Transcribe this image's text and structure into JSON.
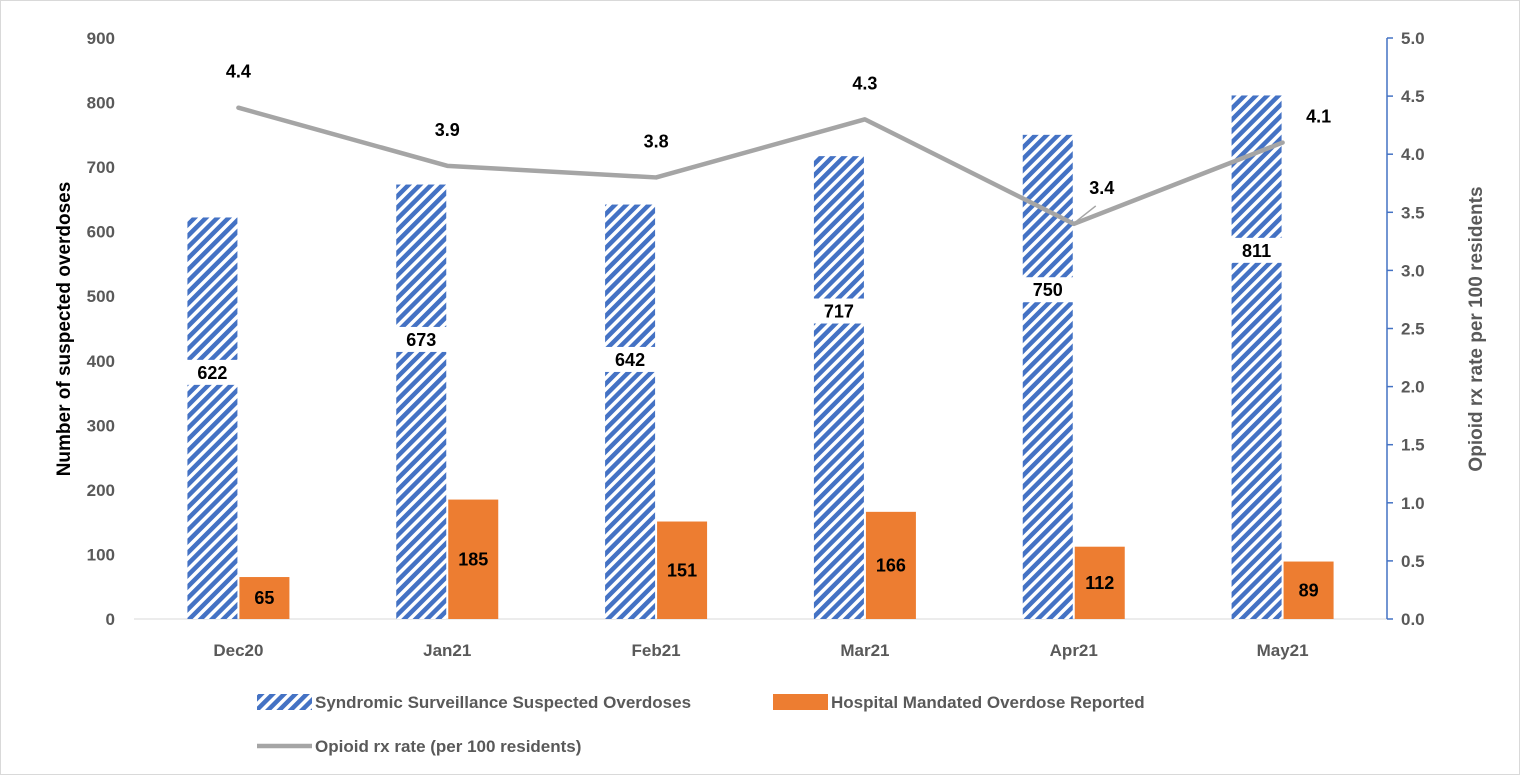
{
  "chart_data": {
    "type": "bar",
    "categories": [
      "Dec20",
      "Jan21",
      "Feb21",
      "Mar21",
      "Apr21",
      "May21"
    ],
    "series": [
      {
        "name": "Syndromic Surveillance Suspected Overdoses",
        "type": "bar",
        "axis": "left",
        "pattern": "diagonal-stripe",
        "color": "#4472c4",
        "values": [
          622,
          673,
          642,
          717,
          750,
          811
        ]
      },
      {
        "name": "Hospital Mandated Overdose Reported",
        "type": "bar",
        "axis": "left",
        "color": "#ed7d31",
        "values": [
          65,
          185,
          151,
          166,
          112,
          89
        ]
      },
      {
        "name": "Opioid rx rate (per 100 residents)",
        "type": "line",
        "axis": "right",
        "color": "#a5a5a5",
        "values": [
          4.4,
          3.9,
          3.8,
          4.3,
          3.4,
          4.1
        ]
      }
    ],
    "ylabel": "Number of suspected overdoses",
    "y2label": "Opioid rx rate per 100 residents",
    "ylim": [
      0,
      900
    ],
    "y2lim": [
      0,
      5.0
    ],
    "yticks": [
      "0",
      "100",
      "200",
      "300",
      "400",
      "500",
      "600",
      "700",
      "800",
      "900"
    ],
    "y2ticks": [
      "0.0",
      "0.5",
      "1.0",
      "1.5",
      "2.0",
      "2.5",
      "3.0",
      "3.5",
      "4.0",
      "4.5",
      "5.0"
    ],
    "grid": false,
    "legend_position": "bottom"
  }
}
